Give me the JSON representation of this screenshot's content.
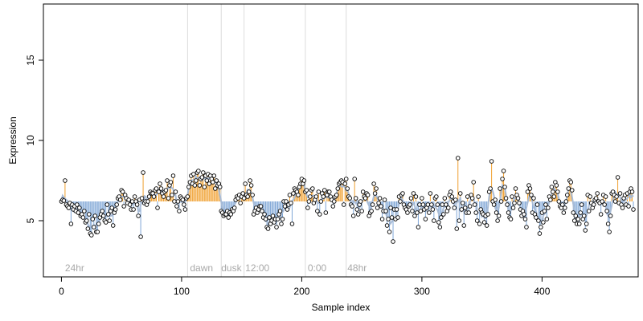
{
  "chart_data": {
    "type": "scatter",
    "xlabel": "Sample index",
    "ylabel": "Expression",
    "xlim": [
      -15,
      480
    ],
    "ylim": [
      1.5,
      18.5
    ],
    "x_ticks": [
      0,
      100,
      200,
      300,
      400
    ],
    "y_ticks": [
      5,
      10,
      15
    ],
    "phase_lines": [
      105,
      133,
      152,
      203,
      237
    ],
    "phase_labels": [
      {
        "x": 3,
        "label": "24hr"
      },
      {
        "x": 107,
        "label": "dawn"
      },
      {
        "x": 133,
        "label": "dusk"
      },
      {
        "x": 153,
        "label": "12:00"
      },
      {
        "x": 205,
        "label": "0:00"
      },
      {
        "x": 238,
        "label": "48hr"
      }
    ],
    "baseline": 6.2,
    "colors": {
      "above": "#f0a030",
      "below": "#7fa6d6",
      "smooth": "#a9bcd6",
      "point_fill": "#ffffff",
      "point_stroke": "#000000",
      "phase_line": "#dcdcdc",
      "phase_text": "#a8a8a8"
    },
    "values": [
      6.2,
      6.3,
      6.25,
      7.5,
      6.0,
      5.9,
      5.8,
      6.1,
      4.8,
      6.0,
      5.7,
      5.9,
      5.6,
      6.0,
      5.5,
      5.8,
      5.3,
      5.4,
      5.2,
      5.6,
      4.9,
      5.0,
      4.5,
      5.4,
      4.2,
      4.1,
      5.1,
      4.6,
      5.3,
      4.3,
      4.3,
      4.8,
      5.2,
      5.4,
      5.6,
      5.3,
      5.0,
      4.9,
      6.0,
      5.4,
      5.0,
      5.6,
      5.8,
      4.7,
      5.5,
      5.7,
      6.0,
      6.4,
      6.5,
      6.3,
      6.9,
      6.8,
      5.9,
      6.6,
      6.4,
      6.1,
      6.3,
      6.0,
      5.7,
      6.2,
      5.7,
      6.5,
      6.2,
      6.0,
      5.3,
      6.3,
      4.0,
      6.4,
      8.0,
      6.1,
      6.2,
      6.0,
      6.2,
      6.5,
      6.8,
      6.7,
      6.7,
      6.5,
      6.9,
      7.0,
      5.8,
      6.8,
      7.3,
      7.0,
      6.7,
      6.5,
      6.8,
      6.9,
      7.5,
      6.4,
      7.2,
      7.4,
      6.6,
      7.8,
      6.2,
      6.8,
      5.9,
      6.2,
      5.6,
      6.5,
      6.4,
      6.3,
      6.0,
      5.7,
      6.4,
      6.5,
      7.1,
      7.4,
      7.8,
      7.3,
      7.9,
      7.2,
      7.5,
      8.0,
      8.1,
      7.2,
      7.6,
      7.7,
      8.0,
      7.1,
      7.8,
      7.5,
      7.9,
      7.3,
      7.8,
      7.6,
      7.4,
      7.8,
      7.0,
      7.5,
      7.2,
      7.3,
      7.1,
      5.6,
      5.5,
      5.3,
      5.4,
      5.4,
      5.6,
      5.2,
      5.5,
      5.4,
      5.7,
      5.6,
      5.8,
      6.3,
      6.5,
      6.4,
      6.6,
      6.1,
      6.5,
      6.7,
      6.4,
      7.3,
      6.6,
      6.5,
      6.8,
      7.5,
      7.2,
      6.6,
      5.4,
      5.6,
      5.8,
      5.5,
      5.7,
      5.9,
      5.9,
      5.6,
      5.2,
      5.4,
      5.1,
      4.6,
      4.5,
      5.2,
      4.8,
      5.0,
      5.3,
      4.9,
      5.1,
      4.6,
      5.1,
      5.4,
      5.6,
      4.8,
      5.1,
      6.2,
      5.9,
      6.2,
      5.7,
      6.0,
      6.6,
      6.1,
      4.8,
      6.7,
      7.0,
      6.9,
      6.8,
      6.6,
      7.1,
      7.3,
      7.6,
      7.3,
      7.5,
      6.8,
      6.9,
      5.8,
      6.2,
      6.5,
      6.9,
      7.0,
      6.1,
      6.3,
      6.5,
      5.6,
      6.8,
      5.4,
      6.2,
      6.7,
      6.5,
      6.9,
      5.5,
      6.6,
      6.8,
      6.8,
      6.5,
      6.3,
      5.9,
      6.2,
      6.5,
      6.6,
      7.0,
      7.3,
      7.4,
      7.5,
      7.4,
      6.0,
      7.3,
      7.6,
      7.0,
      6.5,
      6.4,
      6.0,
      5.9,
      5.3,
      7.6,
      6.4,
      5.7,
      5.4,
      6.0,
      6.2,
      5.6,
      6.8,
      6.5,
      6.4,
      6.7,
      6.6,
      5.3,
      5.5,
      5.6,
      6.0,
      7.3,
      6.7,
      7.0,
      5.8,
      6.1,
      6.4,
      5.9,
      5.1,
      5.6,
      6.3,
      5.6,
      4.7,
      5.1,
      4.3,
      5.8,
      5.2,
      3.7,
      5.7,
      5.1,
      5.7,
      5.2,
      6.5,
      6.2,
      6.6,
      6.7,
      6.0,
      5.8,
      5.7,
      5.5,
      5.9,
      6.0,
      6.4,
      5.6,
      6.7,
      5.3,
      6.5,
      5.5,
      4.6,
      6.0,
      5.6,
      6.4,
      6.0,
      5.7,
      5.1,
      5.8,
      6.0,
      5.5,
      6.7,
      6.0,
      5.7,
      5.0,
      6.4,
      6.5,
      6.0,
      4.9,
      4.6,
      5.2,
      6.0,
      5.4,
      6.4,
      6.0,
      5.6,
      5.8,
      6.6,
      6.8,
      6.5,
      6.2,
      5.8,
      6.3,
      4.5,
      8.9,
      5.0,
      6.7,
      5.7,
      6.1,
      4.7,
      5.8,
      5.5,
      6.5,
      5.5,
      5.9,
      6.6,
      6.4,
      7.4,
      6.0,
      5.5,
      5.0,
      6.5,
      4.8,
      5.7,
      5.5,
      5.4,
      4.9,
      5.3,
      4.7,
      5.4,
      6.8,
      7.0,
      8.7,
      6.2,
      6.0,
      6.3,
      5.5,
      5.0,
      5.3,
      7.0,
      6.2,
      7.6,
      8.1,
      7.1,
      6.4,
      6.0,
      5.5,
      5.2,
      5.1,
      6.5,
      5.8,
      6.1,
      7.0,
      6.6,
      6.4,
      6.1,
      5.7,
      5.3,
      5.6,
      5.4,
      5.1,
      4.6,
      6.8,
      7.2,
      7.0,
      6.6,
      5.5,
      6.4,
      5.4,
      5.2,
      6.0,
      5.0,
      4.2,
      4.6,
      5.5,
      4.9,
      5.6,
      6.0,
      5.1,
      5.8,
      6.5,
      6.3,
      7.1,
      6.8,
      6.5,
      7.4,
      7.2,
      6.8,
      6.2,
      5.9,
      5.8,
      6.0,
      5.5,
      5.8,
      6.2,
      6.6,
      7.0,
      7.5,
      7.4,
      6.9,
      5.5,
      5.0,
      5.3,
      4.8,
      5.1,
      4.8,
      5.5,
      6.0,
      5.1,
      5.3,
      4.4,
      4.8,
      6.6,
      5.6,
      6.5,
      6.1,
      5.8,
      6.0,
      6.3,
      6.4,
      6.7,
      6.2,
      6.1,
      5.4,
      6.2,
      6.6,
      6.0,
      6.5,
      5.6,
      4.8,
      4.3,
      5.3,
      6.7,
      6.8,
      6.6,
      6.2,
      6.5,
      7.7,
      6.1,
      6.7,
      6.0,
      5.8,
      6.4,
      6.6,
      6.0,
      6.7,
      5.9,
      6.8,
      7.0,
      6.8,
      5.7
    ]
  }
}
